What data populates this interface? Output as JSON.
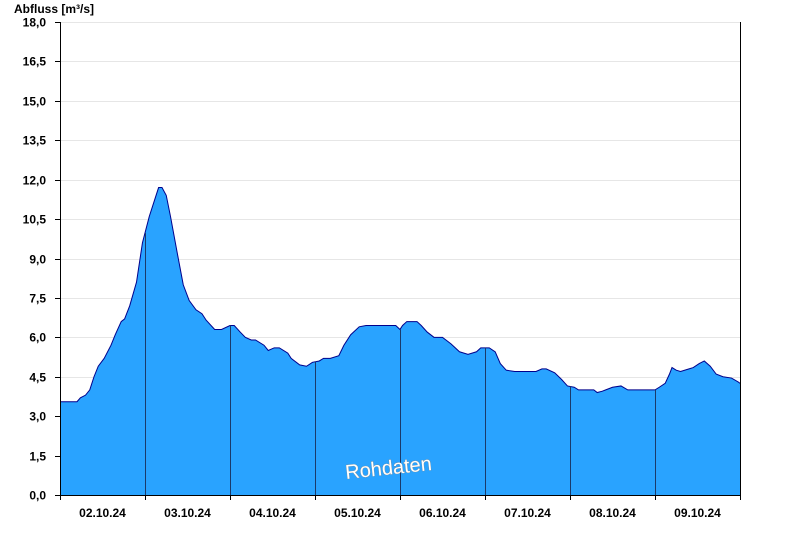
{
  "chart_data": {
    "type": "area",
    "ylabel": "Abfluss [m³/s]",
    "ylim": [
      0,
      18
    ],
    "y_ticks": [
      "0,0",
      "1,5",
      "3,0",
      "4,5",
      "6,0",
      "7,5",
      "9,0",
      "10,5",
      "12,0",
      "13,5",
      "15,0",
      "16,5",
      "18,0"
    ],
    "y_tick_values": [
      0,
      1.5,
      3,
      4.5,
      6,
      7.5,
      9,
      10.5,
      12,
      13.5,
      15,
      16.5,
      18
    ],
    "x_range_days": [
      0,
      8
    ],
    "x_ticks": [
      "02.10.24",
      "03.10.24",
      "04.10.24",
      "05.10.24",
      "06.10.24",
      "07.10.24",
      "08.10.24",
      "09.10.24"
    ],
    "x_tick_days": [
      0.5,
      1.5,
      2.5,
      3.5,
      4.5,
      5.5,
      6.5,
      7.5
    ],
    "day_boundaries": [
      1,
      2,
      3,
      4,
      5,
      6,
      7
    ],
    "grid": true,
    "fill_color": "#29a3ff",
    "line_color": "#00008b",
    "watermark": "Rohdaten",
    "series": [
      {
        "x": [
          0,
          0.2,
          0.24,
          0.3,
          0.35,
          0.4,
          0.45,
          0.52,
          0.6,
          0.65,
          0.72,
          0.76,
          0.82,
          0.9,
          0.97,
          1.05,
          1.12,
          1.16,
          1.2,
          1.25,
          1.3,
          1.38,
          1.45,
          1.52,
          1.6,
          1.67,
          1.72,
          1.82,
          1.9,
          2.0,
          2.05,
          2.12,
          2.18,
          2.25,
          2.3,
          2.4,
          2.45,
          2.52,
          2.58,
          2.68,
          2.72,
          2.82,
          2.9,
          2.97,
          3.05,
          3.1,
          3.18,
          3.28,
          3.34,
          3.42,
          3.52,
          3.6,
          3.68,
          3.8,
          3.95,
          4.0,
          4.03,
          4.08,
          4.2,
          4.25,
          4.32,
          4.4,
          4.5,
          4.6,
          4.7,
          4.8,
          4.9,
          4.95,
          5.05,
          5.12,
          5.18,
          5.25,
          5.35,
          5.5,
          5.6,
          5.67,
          5.72,
          5.82,
          5.9,
          5.97,
          6.05,
          6.1,
          6.2,
          6.28,
          6.32,
          6.38,
          6.42,
          6.5,
          6.6,
          6.68,
          6.8,
          6.9,
          7.0,
          7.05,
          7.12,
          7.17,
          7.2,
          7.25,
          7.3,
          7.4,
          7.45,
          7.52,
          7.58,
          7.65,
          7.72,
          7.8,
          7.9,
          7.98,
          8.0
        ],
        "y": [
          3.55,
          3.55,
          3.7,
          3.8,
          4.0,
          4.5,
          4.9,
          5.2,
          5.7,
          6.1,
          6.6,
          6.7,
          7.2,
          8.1,
          9.6,
          10.6,
          11.3,
          11.7,
          11.7,
          11.4,
          10.6,
          9.2,
          8.0,
          7.4,
          7.05,
          6.9,
          6.65,
          6.3,
          6.3,
          6.45,
          6.45,
          6.2,
          6.0,
          5.9,
          5.9,
          5.7,
          5.5,
          5.6,
          5.6,
          5.4,
          5.2,
          4.95,
          4.9,
          5.05,
          5.1,
          5.2,
          5.2,
          5.3,
          5.7,
          6.1,
          6.4,
          6.45,
          6.45,
          6.45,
          6.45,
          6.3,
          6.45,
          6.6,
          6.6,
          6.45,
          6.2,
          6.0,
          6.0,
          5.75,
          5.45,
          5.35,
          5.45,
          5.6,
          5.6,
          5.45,
          5.0,
          4.75,
          4.7,
          4.7,
          4.7,
          4.8,
          4.8,
          4.65,
          4.4,
          4.15,
          4.1,
          4.0,
          4.0,
          4.0,
          3.9,
          3.95,
          4.0,
          4.1,
          4.15,
          4.0,
          4.0,
          4.0,
          4.0,
          4.1,
          4.25,
          4.6,
          4.85,
          4.75,
          4.7,
          4.8,
          4.85,
          5.0,
          5.1,
          4.9,
          4.6,
          4.5,
          4.45,
          4.3,
          4.25
        ]
      }
    ]
  }
}
